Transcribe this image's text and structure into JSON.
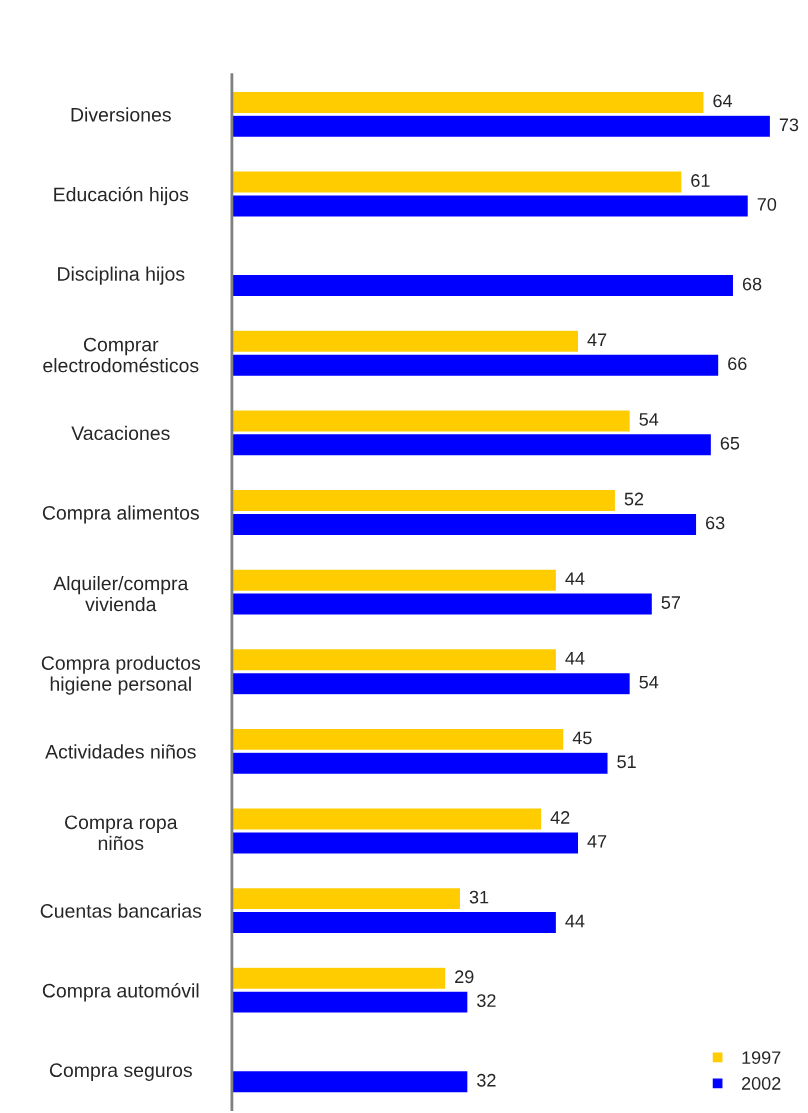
{
  "chart_data": {
    "type": "bar",
    "orientation": "horizontal",
    "categories": [
      "Diversiones",
      "Educación hijos",
      "Disciplina hijos",
      "Comprar\nelectrodomésticos",
      "Vacaciones",
      "Compra alimentos",
      "Alquiler/compra\nvivienda",
      "Compra productos\nhigiene personal",
      "Actividades niños",
      "Compra ropa\nniños",
      "Cuentas bancarias",
      "Compra automóvil",
      "Compra seguros"
    ],
    "series": [
      {
        "name": "1997",
        "color": "#ffcc00",
        "values": [
          64,
          61,
          null,
          47,
          54,
          52,
          44,
          44,
          45,
          42,
          31,
          29,
          null
        ]
      },
      {
        "name": "2002",
        "color": "#0000ff",
        "values": [
          73,
          70,
          68,
          66,
          65,
          63,
          57,
          54,
          51,
          47,
          44,
          32,
          32
        ]
      }
    ],
    "data_labels": true,
    "legend": "bottom right",
    "grid": false
  }
}
